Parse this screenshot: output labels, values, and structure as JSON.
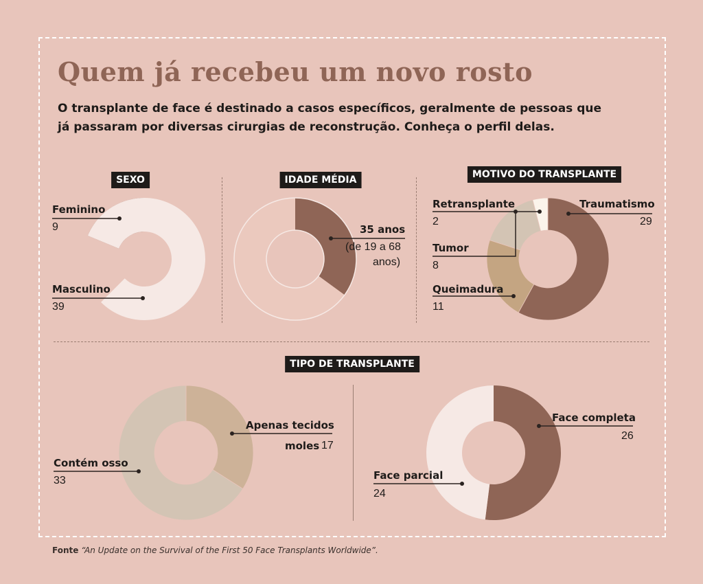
{
  "title": "Quem já recebeu um novo rosto",
  "subtitle": "O transplante de face é destinado a casos específicos, geralmente de pessoas que já passaram por diversas cirurgias de reconstrução. Conheça o perfil delas.",
  "colors": {
    "background": "#e8c5bb",
    "dark_brown": "#8f6556",
    "light": "#f6e9e5",
    "tan": "#c4a582",
    "beige": "#d3c4b4",
    "cream": "#fbf4eb",
    "label_bg": "#1e1b19"
  },
  "chart_data": [
    {
      "type": "pie",
      "title": "SEXO",
      "slices": [
        {
          "label": "Feminino",
          "value": 9,
          "color": "#8f6556"
        },
        {
          "label": "Masculino",
          "value": 39,
          "color": "#f6e9e5"
        }
      ]
    },
    {
      "type": "pie",
      "title": "IDADE MÉDIA",
      "slices": [
        {
          "label": "35 anos",
          "value": 35,
          "color": "#8f6556"
        },
        {
          "label": "",
          "value": 65,
          "color": "#ebc9be"
        }
      ],
      "value_label": "35 anos",
      "range_label": "(de 19 a 68",
      "range_label_2": "anos)"
    },
    {
      "type": "pie",
      "title": "MOTIVO DO TRANSPLANTE",
      "slices": [
        {
          "label": "Traumatismo",
          "value": 29,
          "color": "#8f6556"
        },
        {
          "label": "Queimadura",
          "value": 11,
          "color": "#c4a582"
        },
        {
          "label": "Tumor",
          "value": 8,
          "color": "#d3c4b4"
        },
        {
          "label": "Retransplante",
          "value": 2,
          "color": "#fbf4eb"
        }
      ]
    },
    {
      "type": "pie",
      "title": "TIPO DE TRANSPLANTE",
      "slices": [
        {
          "label": "Apenas tecidos moles",
          "value": 17,
          "color": "#cdb298"
        },
        {
          "label": "Contém osso",
          "value": 33,
          "color": "#d3c4b4"
        }
      ]
    },
    {
      "type": "pie",
      "title": "TIPO DE TRANSPLANTE",
      "slices": [
        {
          "label": "Face completa",
          "value": 26,
          "color": "#8f6556"
        },
        {
          "label": "Face parcial",
          "value": 24,
          "color": "#f6e9e5"
        }
      ]
    }
  ],
  "labels": {
    "sexo": {
      "feminino": "Feminino",
      "feminino_value": "9",
      "masculino": "Masculino",
      "masculino_value": "39"
    },
    "idade": {
      "value": "35 anos",
      "range_1": "(de 19 a 68",
      "range_2": "anos)"
    },
    "motivo": {
      "retransplante": "Retransplante",
      "retransplante_value": "2",
      "traumatismo": "Traumatismo",
      "traumatismo_value": "29",
      "tumor": "Tumor",
      "tumor_value": "8",
      "queimadura": "Queimadura",
      "queimadura_value": "11"
    },
    "tipo": {
      "tecidos_1": "Apenas tecidos",
      "tecidos_2": "moles",
      "tecidos_value": "17",
      "osso": "Contém osso",
      "osso_value": "33",
      "completa": "Face completa",
      "completa_value": "26",
      "parcial": "Face parcial",
      "parcial_value": "24"
    }
  },
  "source": {
    "label": "Fonte",
    "text": "“An Update on the Survival of the First 50 Face Transplants Worldwide”."
  }
}
